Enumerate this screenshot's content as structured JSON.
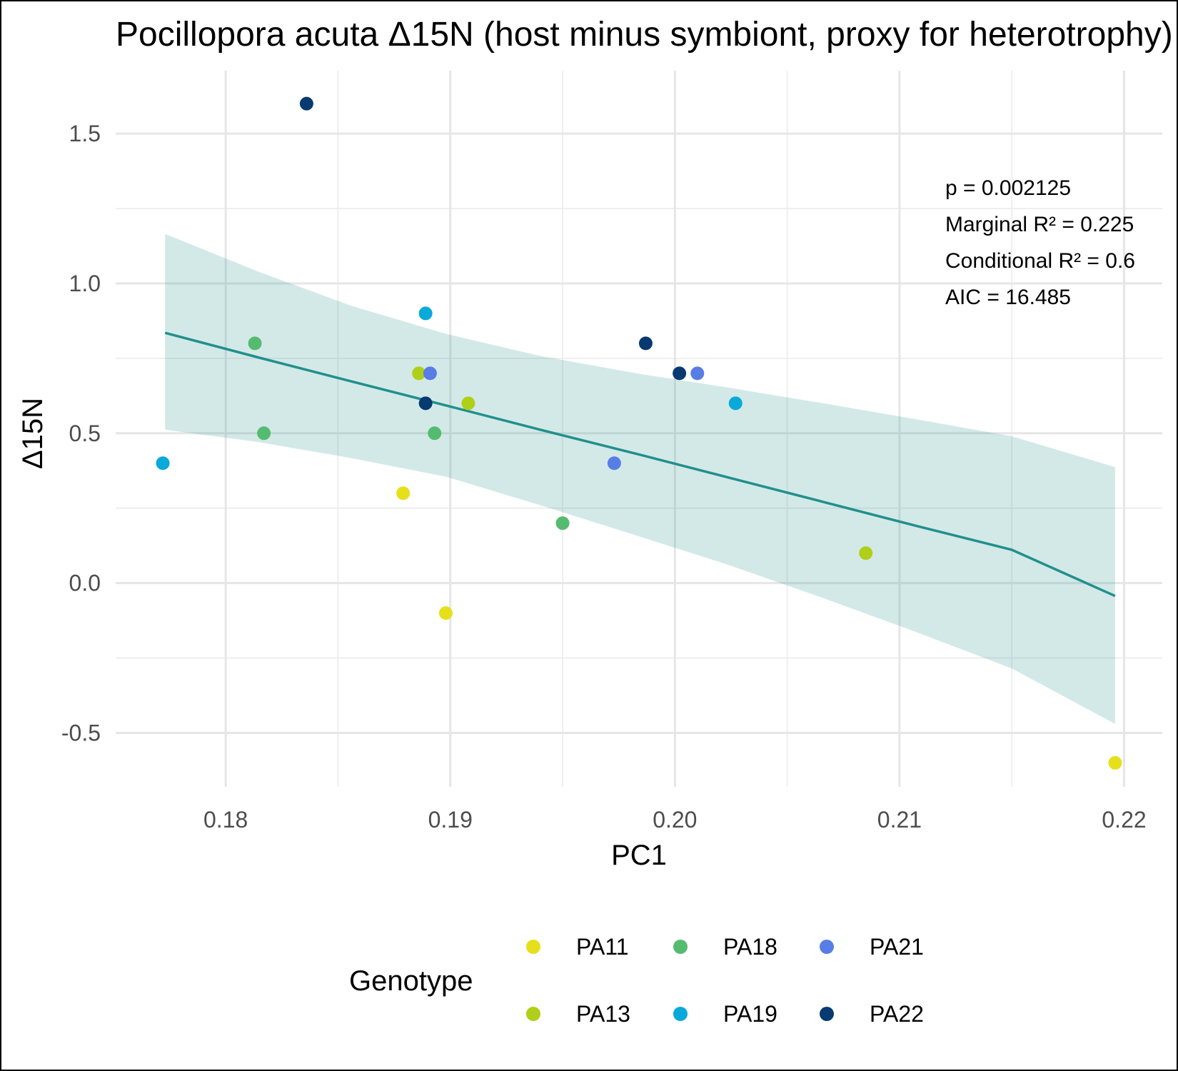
{
  "chart_data": {
    "type": "scatter",
    "title": "Pocillopora acuta Δ15N (host minus symbiont, proxy for heterotrophy)",
    "xlabel": "PC1",
    "ylabel": "Δ15N",
    "xlim": [
      0.1751,
      0.2217
    ],
    "ylim": [
      -0.68,
      1.71
    ],
    "x_ticks": [
      0.18,
      0.19,
      0.2,
      0.21,
      0.22
    ],
    "x_tick_labels": [
      "0.18",
      "0.19",
      "0.20",
      "0.21",
      "0.22"
    ],
    "y_ticks": [
      -0.5,
      0.0,
      0.5,
      1.0,
      1.5
    ],
    "y_tick_labels": [
      "-0.5",
      "0.0",
      "0.5",
      "1.0",
      "1.5"
    ],
    "grid": true,
    "legend": {
      "title": "Genotype",
      "position": "bottom"
    },
    "stats": [
      "p = 0.002125",
      "Marginal R² = 0.225",
      "Conditional R² = 0.6",
      "AIC = 16.485"
    ],
    "fit": {
      "color": "#21908c",
      "ribbon_color": "#21908c",
      "ribbon_opacity": 0.2,
      "x": [
        0.1773,
        0.1815,
        0.1856,
        0.1898,
        0.194,
        0.1982,
        0.2024,
        0.2066,
        0.2108,
        0.215,
        0.2196
      ],
      "y": [
        0.835,
        0.752,
        0.673,
        0.593,
        0.512,
        0.433,
        0.352,
        0.271,
        0.19,
        0.111,
        -0.043
      ],
      "lower": [
        0.512,
        0.47,
        0.417,
        0.355,
        0.26,
        0.161,
        0.06,
        -0.05,
        -0.165,
        -0.285,
        -0.47
      ],
      "upper": [
        1.165,
        1.038,
        0.925,
        0.832,
        0.758,
        0.701,
        0.652,
        0.6,
        0.546,
        0.49,
        0.387
      ]
    },
    "series": [
      {
        "name": "PA11",
        "color": "#e6e01a",
        "points": [
          [
            0.1879,
            0.3
          ],
          [
            0.1898,
            -0.1
          ],
          [
            0.2196,
            -0.6
          ]
        ]
      },
      {
        "name": "PA13",
        "color": "#afcf18",
        "points": [
          [
            0.1886,
            0.7
          ],
          [
            0.1908,
            0.6
          ],
          [
            0.2085,
            0.1
          ]
        ]
      },
      {
        "name": "PA18",
        "color": "#55bb70",
        "points": [
          [
            0.1813,
            0.8
          ],
          [
            0.1817,
            0.5
          ],
          [
            0.1893,
            0.5
          ],
          [
            0.195,
            0.2
          ]
        ]
      },
      {
        "name": "PA19",
        "color": "#09a9d9",
        "points": [
          [
            0.1772,
            0.4
          ],
          [
            0.1889,
            0.9
          ],
          [
            0.2027,
            0.6
          ]
        ]
      },
      {
        "name": "PA21",
        "color": "#587de6",
        "points": [
          [
            0.1891,
            0.7
          ],
          [
            0.1973,
            0.4
          ],
          [
            0.201,
            0.7
          ]
        ]
      },
      {
        "name": "PA22",
        "color": "#063a70",
        "points": [
          [
            0.1836,
            1.6
          ],
          [
            0.1889,
            0.6
          ],
          [
            0.1987,
            0.8
          ],
          [
            0.2002,
            0.7
          ]
        ]
      }
    ]
  }
}
